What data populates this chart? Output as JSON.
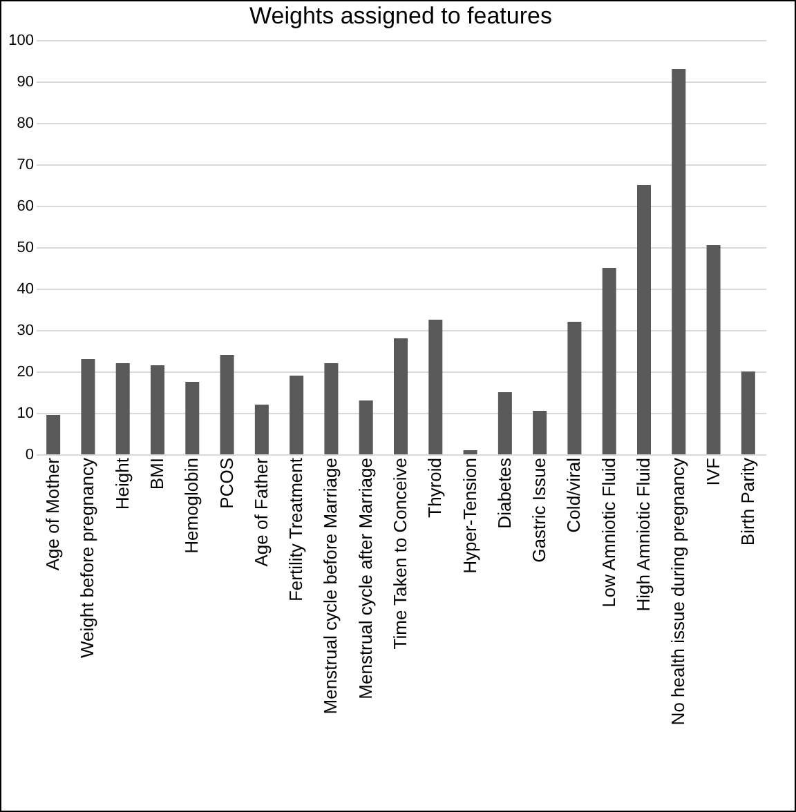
{
  "chart_data": {
    "type": "bar",
    "title": "Weights assigned to features",
    "categories": [
      "Age of Mother",
      "Weight before pregnancy",
      "Height",
      "BMI",
      "Hemoglobin",
      "PCOS",
      "Age of Father",
      "Fertility Treatment",
      "Menstrual cycle before Marriage",
      "Menstrual cycle after Marriage",
      "Time Taken to Conceive",
      "Thyroid",
      "Hyper-Tension",
      "Diabetes",
      "Gastric Issue",
      "Cold/viral",
      "Low Amniotic Fluid",
      "High Amniotic Fluid",
      "No health issue during pregnancy",
      "IVF",
      "Birth Parity"
    ],
    "values": [
      9.5,
      23,
      22,
      21.5,
      17.5,
      24,
      12,
      19,
      22,
      13,
      28,
      32.5,
      1,
      15,
      10.5,
      32,
      45,
      65,
      93,
      50.5,
      20
    ],
    "color": "#595959",
    "ylim": [
      0,
      100
    ],
    "yticks": [
      0,
      10,
      20,
      30,
      40,
      50,
      60,
      70,
      80,
      90,
      100
    ],
    "grid": "y"
  }
}
